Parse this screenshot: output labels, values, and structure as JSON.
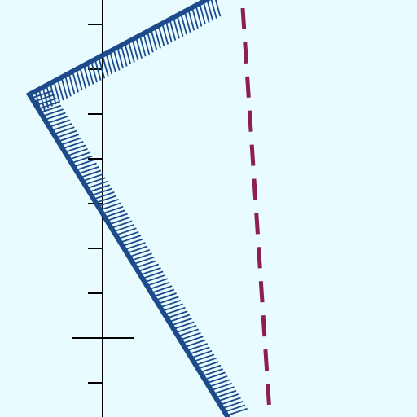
{
  "colors": {
    "background": "#e8fbff",
    "axis": "#000000",
    "hatch": "#1c4a8a",
    "dashed_line": "#8b1f50"
  },
  "axis": {
    "tick_count": 10,
    "major_tick_index": 1
  },
  "shape": {
    "type": "hatched-polyline",
    "vertex_count": 3,
    "hatch_side": "inner"
  },
  "dashed_line": {
    "style": "dashed"
  }
}
